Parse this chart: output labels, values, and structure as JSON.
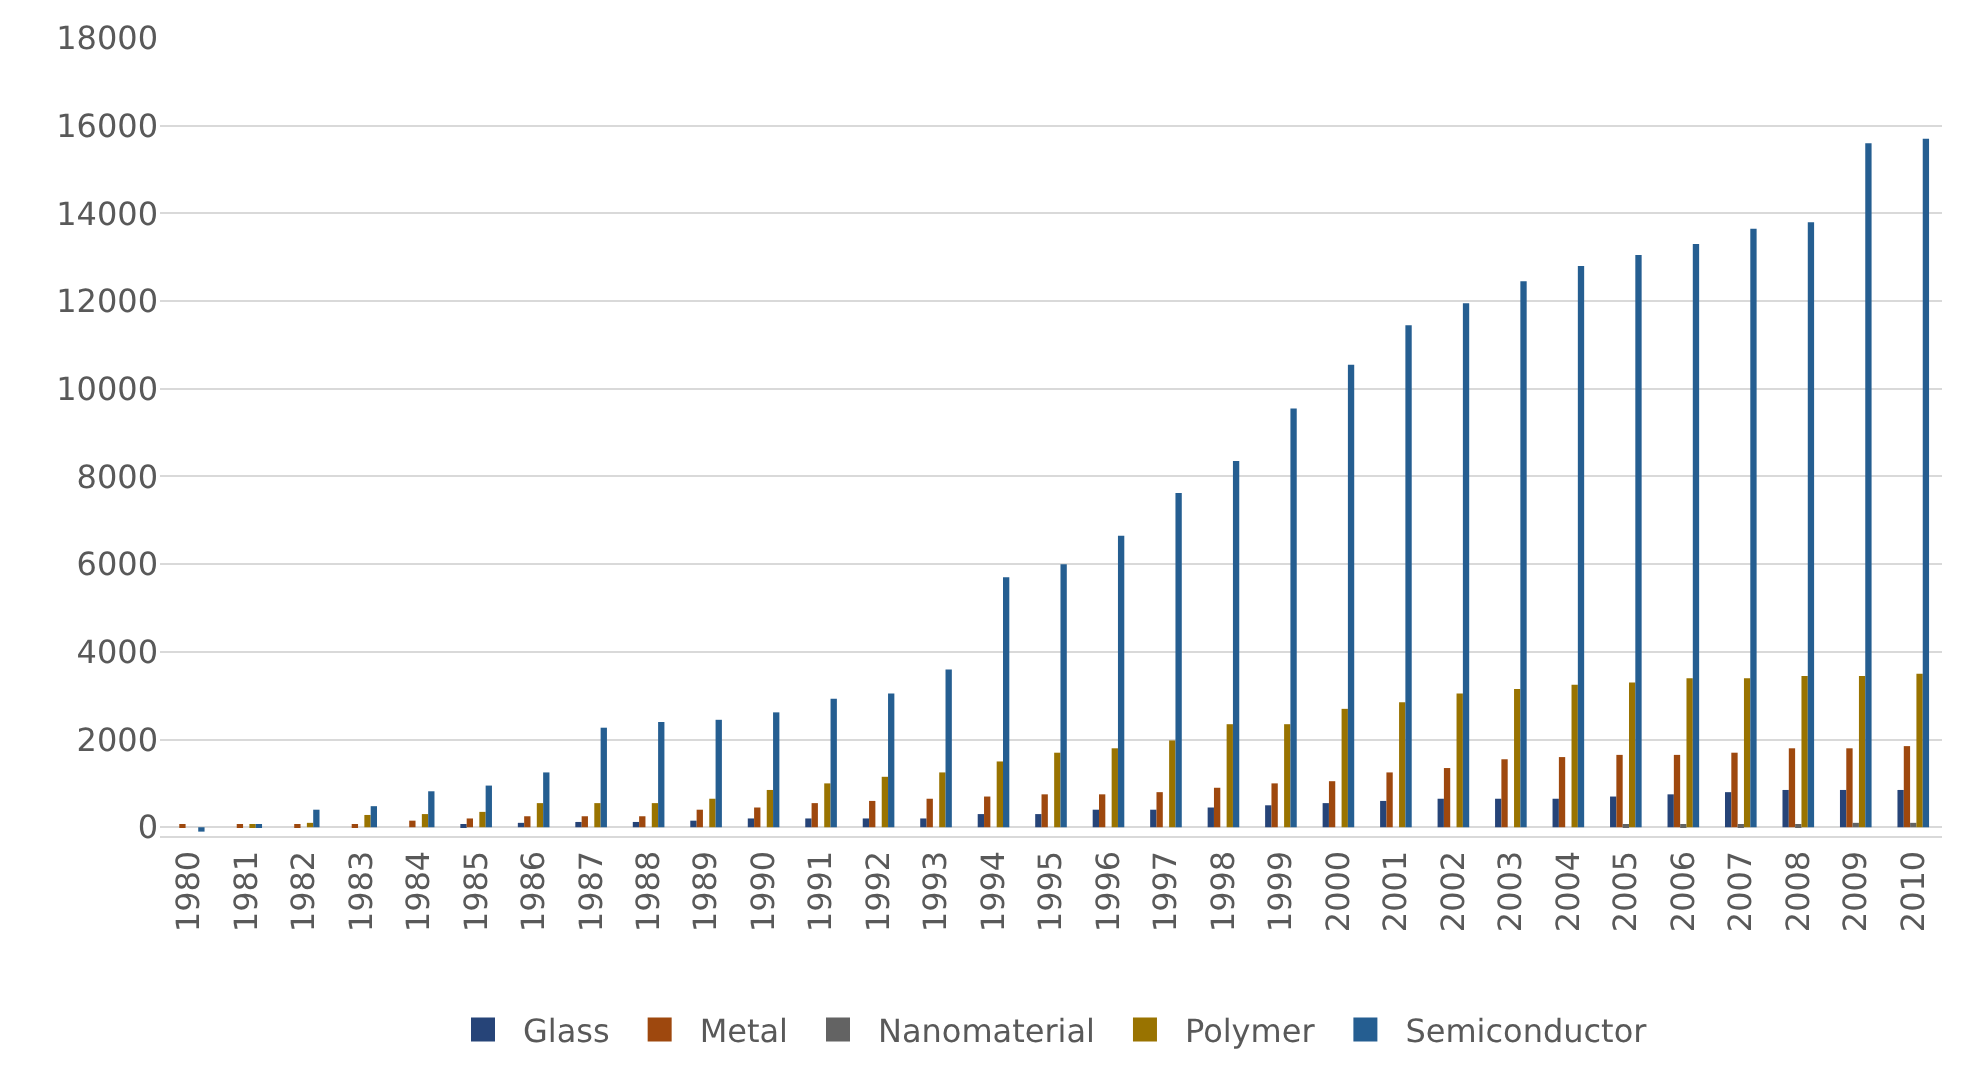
{
  "chart_data": {
    "type": "bar",
    "categories": [
      "1980",
      "1981",
      "1982",
      "1983",
      "1984",
      "1985",
      "1986",
      "1987",
      "1988",
      "1989",
      "1990",
      "1991",
      "1992",
      "1993",
      "1994",
      "1995",
      "1996",
      "1997",
      "1998",
      "1999",
      "2000",
      "2001",
      "2002",
      "2003",
      "2004",
      "2005",
      "2006",
      "2007",
      "2008",
      "2009",
      "2010"
    ],
    "series": [
      {
        "name": "Glass",
        "color": "#264478",
        "values": [
          0,
          0,
          0,
          0,
          0,
          50,
          100,
          120,
          120,
          150,
          200,
          200,
          200,
          200,
          300,
          300,
          400,
          400,
          450,
          500,
          550,
          600,
          650,
          650,
          650,
          700,
          750,
          800,
          850,
          850,
          850
        ]
      },
      {
        "name": "Metal",
        "color": "#9e480e",
        "values": [
          60,
          60,
          60,
          60,
          150,
          200,
          250,
          250,
          250,
          400,
          450,
          550,
          600,
          650,
          700,
          750,
          750,
          800,
          900,
          1000,
          1050,
          1250,
          1350,
          1550,
          1600,
          1650,
          1650,
          1700,
          1800,
          1800,
          1850
        ]
      },
      {
        "name": "Nanomaterial",
        "color": "#636363",
        "values": [
          0,
          0,
          0,
          0,
          0,
          0,
          0,
          0,
          0,
          0,
          0,
          0,
          0,
          0,
          0,
          0,
          0,
          0,
          0,
          0,
          0,
          0,
          0,
          0,
          0,
          30,
          30,
          30,
          50,
          100,
          100
        ]
      },
      {
        "name": "Polymer",
        "color": "#997300",
        "values": [
          0,
          50,
          100,
          280,
          300,
          350,
          550,
          550,
          550,
          650,
          850,
          1000,
          1150,
          1250,
          1500,
          1700,
          1800,
          1980,
          2350,
          2350,
          2700,
          2850,
          3050,
          3150,
          3250,
          3300,
          3400,
          3400,
          3450,
          3450,
          3500
        ]
      },
      {
        "name": "Semiconductor",
        "color": "#255e91",
        "values": [
          -100,
          50,
          400,
          480,
          820,
          950,
          1250,
          2270,
          2400,
          2450,
          2620,
          2930,
          3050,
          3600,
          5700,
          6000,
          6650,
          7620,
          8350,
          9550,
          10550,
          11450,
          11950,
          12450,
          12800,
          13050,
          13300,
          13650,
          13800,
          15600,
          15700
        ]
      }
    ],
    "ylim": [
      -200,
      18000
    ],
    "yticks": [
      0,
      2000,
      4000,
      6000,
      8000,
      10000,
      12000,
      14000,
      16000,
      18000
    ],
    "grid": "y",
    "legend": "bottom"
  }
}
